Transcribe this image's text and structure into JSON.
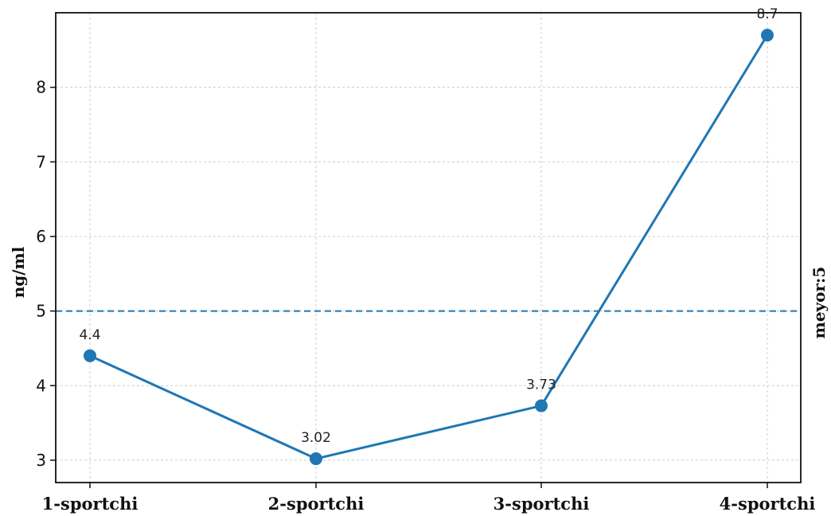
{
  "chart_data": {
    "type": "line",
    "categories": [
      "1-sportchi",
      "2-sportchi",
      "3-sportchi",
      "4-sportchi"
    ],
    "values": [
      4.4,
      3.02,
      3.73,
      8.7
    ],
    "data_labels": [
      "4.4",
      "3.02",
      "3.73",
      "8.7"
    ],
    "ylabel": "ng/ml",
    "xlabel": "",
    "ylim": [
      2.7,
      9.0
    ],
    "yticks": [
      "3",
      "4",
      "5",
      "6",
      "7",
      "8"
    ],
    "reference_line": {
      "value": 5,
      "label": "meyor:5"
    },
    "grid": true,
    "series_color": "#1f77b4",
    "reference_color": "#1f77b4"
  }
}
